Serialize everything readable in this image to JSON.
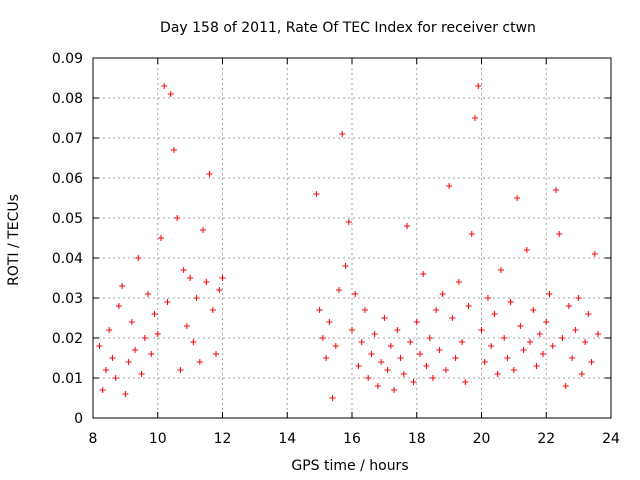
{
  "chart_data": {
    "type": "scatter",
    "title": "Day 158 of 2011, Rate Of TEC Index for receiver ctwn",
    "xlabel": "GPS time / hours",
    "ylabel": "ROTI / TECUs",
    "xlim": [
      8,
      24
    ],
    "ylim": [
      0,
      0.09
    ],
    "grid": true,
    "marker": "+",
    "marker_color": "#ff0000",
    "xticks": [
      8,
      10,
      12,
      14,
      16,
      18,
      20,
      22,
      24
    ],
    "xtick_labels": [
      "8",
      "10",
      "12",
      "14",
      "16",
      "18",
      "20",
      "22",
      "24"
    ],
    "yticks": [
      0,
      0.01,
      0.02,
      0.03,
      0.04,
      0.05,
      0.06,
      0.07,
      0.08,
      0.09
    ],
    "ytick_labels": [
      "0",
      "0.01",
      "0.02",
      "0.03",
      "0.04",
      "0.05",
      "0.06",
      "0.07",
      "0.08",
      "0.09"
    ],
    "series": [
      {
        "name": "ROTI",
        "points": [
          [
            8.2,
            0.018
          ],
          [
            8.3,
            0.007
          ],
          [
            8.4,
            0.012
          ],
          [
            8.5,
            0.022
          ],
          [
            8.6,
            0.015
          ],
          [
            8.7,
            0.01
          ],
          [
            8.8,
            0.028
          ],
          [
            8.9,
            0.033
          ],
          [
            9.0,
            0.006
          ],
          [
            9.1,
            0.014
          ],
          [
            9.2,
            0.024
          ],
          [
            9.3,
            0.017
          ],
          [
            9.4,
            0.04
          ],
          [
            9.5,
            0.011
          ],
          [
            9.6,
            0.02
          ],
          [
            9.7,
            0.031
          ],
          [
            9.8,
            0.016
          ],
          [
            9.9,
            0.026
          ],
          [
            10.0,
            0.021
          ],
          [
            10.1,
            0.045
          ],
          [
            10.2,
            0.083
          ],
          [
            10.3,
            0.029
          ],
          [
            10.4,
            0.081
          ],
          [
            10.5,
            0.067
          ],
          [
            10.6,
            0.05
          ],
          [
            10.7,
            0.012
          ],
          [
            10.8,
            0.037
          ],
          [
            10.9,
            0.023
          ],
          [
            11.0,
            0.035
          ],
          [
            11.1,
            0.019
          ],
          [
            11.2,
            0.03
          ],
          [
            11.3,
            0.014
          ],
          [
            11.4,
            0.047
          ],
          [
            11.5,
            0.034
          ],
          [
            11.6,
            0.061
          ],
          [
            11.7,
            0.027
          ],
          [
            11.8,
            0.016
          ],
          [
            11.9,
            0.032
          ],
          [
            12.0,
            0.035
          ],
          [
            14.9,
            0.056
          ],
          [
            15.0,
            0.027
          ],
          [
            15.1,
            0.02
          ],
          [
            15.2,
            0.015
          ],
          [
            15.3,
            0.024
          ],
          [
            15.4,
            0.005
          ],
          [
            15.5,
            0.018
          ],
          [
            15.6,
            0.032
          ],
          [
            15.7,
            0.071
          ],
          [
            15.8,
            0.038
          ],
          [
            15.9,
            0.049
          ],
          [
            16.0,
            0.022
          ],
          [
            16.1,
            0.031
          ],
          [
            16.2,
            0.013
          ],
          [
            16.3,
            0.019
          ],
          [
            16.4,
            0.027
          ],
          [
            16.5,
            0.01
          ],
          [
            16.6,
            0.016
          ],
          [
            16.7,
            0.021
          ],
          [
            16.8,
            0.008
          ],
          [
            16.9,
            0.014
          ],
          [
            17.0,
            0.025
          ],
          [
            17.1,
            0.012
          ],
          [
            17.2,
            0.018
          ],
          [
            17.3,
            0.007
          ],
          [
            17.4,
            0.022
          ],
          [
            17.5,
            0.015
          ],
          [
            17.6,
            0.011
          ],
          [
            17.7,
            0.048
          ],
          [
            17.8,
            0.019
          ],
          [
            17.9,
            0.009
          ],
          [
            18.0,
            0.024
          ],
          [
            18.1,
            0.016
          ],
          [
            18.2,
            0.036
          ],
          [
            18.3,
            0.013
          ],
          [
            18.4,
            0.02
          ],
          [
            18.5,
            0.01
          ],
          [
            18.6,
            0.027
          ],
          [
            18.7,
            0.017
          ],
          [
            18.8,
            0.031
          ],
          [
            18.9,
            0.012
          ],
          [
            19.0,
            0.058
          ],
          [
            19.1,
            0.025
          ],
          [
            19.2,
            0.015
          ],
          [
            19.3,
            0.034
          ],
          [
            19.4,
            0.019
          ],
          [
            19.5,
            0.009
          ],
          [
            19.6,
            0.028
          ],
          [
            19.7,
            0.046
          ],
          [
            19.8,
            0.075
          ],
          [
            19.9,
            0.083
          ],
          [
            20.0,
            0.022
          ],
          [
            20.1,
            0.014
          ],
          [
            20.2,
            0.03
          ],
          [
            20.3,
            0.018
          ],
          [
            20.4,
            0.026
          ],
          [
            20.5,
            0.011
          ],
          [
            20.6,
            0.037
          ],
          [
            20.7,
            0.02
          ],
          [
            20.8,
            0.015
          ],
          [
            20.9,
            0.029
          ],
          [
            21.0,
            0.012
          ],
          [
            21.1,
            0.055
          ],
          [
            21.2,
            0.023
          ],
          [
            21.3,
            0.017
          ],
          [
            21.4,
            0.042
          ],
          [
            21.5,
            0.019
          ],
          [
            21.6,
            0.027
          ],
          [
            21.7,
            0.013
          ],
          [
            21.8,
            0.021
          ],
          [
            21.9,
            0.016
          ],
          [
            22.0,
            0.024
          ],
          [
            22.1,
            0.031
          ],
          [
            22.2,
            0.018
          ],
          [
            22.3,
            0.057
          ],
          [
            22.4,
            0.046
          ],
          [
            22.5,
            0.02
          ],
          [
            22.6,
            0.008
          ],
          [
            22.7,
            0.028
          ],
          [
            22.8,
            0.015
          ],
          [
            22.9,
            0.022
          ],
          [
            23.0,
            0.03
          ],
          [
            23.1,
            0.011
          ],
          [
            23.2,
            0.019
          ],
          [
            23.3,
            0.026
          ],
          [
            23.4,
            0.014
          ],
          [
            23.5,
            0.041
          ],
          [
            23.6,
            0.021
          ]
        ]
      }
    ]
  }
}
